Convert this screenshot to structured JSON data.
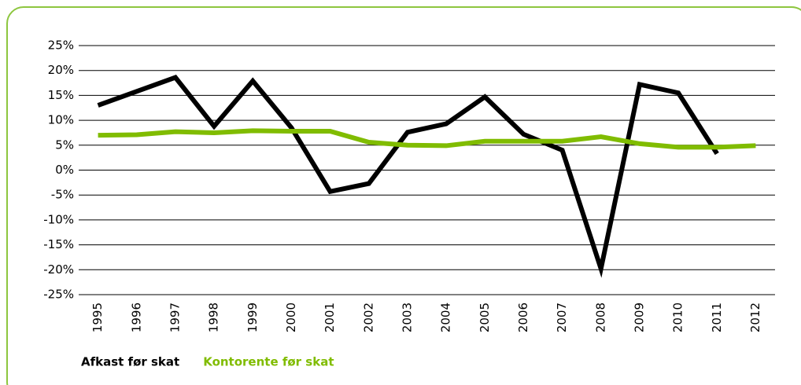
{
  "chart_data": {
    "type": "line",
    "categories": [
      "1995",
      "1996",
      "1997",
      "1998",
      "1999",
      "2000",
      "2001",
      "2002",
      "2003",
      "2004",
      "2005",
      "2006",
      "2007",
      "2008",
      "2009",
      "2010",
      "2011",
      "2012"
    ],
    "series": [
      {
        "name": "Afkast før skat",
        "color": "#000000",
        "values": [
          13,
          15.8,
          18.6,
          8.8,
          17.9,
          8.5,
          -4.3,
          -2.7,
          7.6,
          9.3,
          14.7,
          7.2,
          4,
          -19.8,
          17.2,
          15.5,
          3.3,
          null
        ]
      },
      {
        "name": "Kontorente før skat",
        "color": "#80bc00",
        "values": [
          7.0,
          7.1,
          7.7,
          7.5,
          7.9,
          7.8,
          7.8,
          5.6,
          5.0,
          4.9,
          5.8,
          5.8,
          5.8,
          6.7,
          5.3,
          4.6,
          4.6,
          4.9
        ]
      }
    ],
    "ylim": [
      -25,
      25
    ],
    "yticks": [
      {
        "value": -25,
        "label": "-25%"
      },
      {
        "value": -20,
        "label": "-20%"
      },
      {
        "value": -15,
        "label": "-15%"
      },
      {
        "value": -10,
        "label": "-10%"
      },
      {
        "value": -5,
        "label": "-5%"
      },
      {
        "value": 0,
        "label": "0%"
      },
      {
        "value": 5,
        "label": "5%"
      },
      {
        "value": 10,
        "label": "10%"
      },
      {
        "value": 15,
        "label": "15%"
      },
      {
        "value": 20,
        "label": "20%"
      },
      {
        "value": 25,
        "label": "25%"
      }
    ],
    "grid": true
  }
}
